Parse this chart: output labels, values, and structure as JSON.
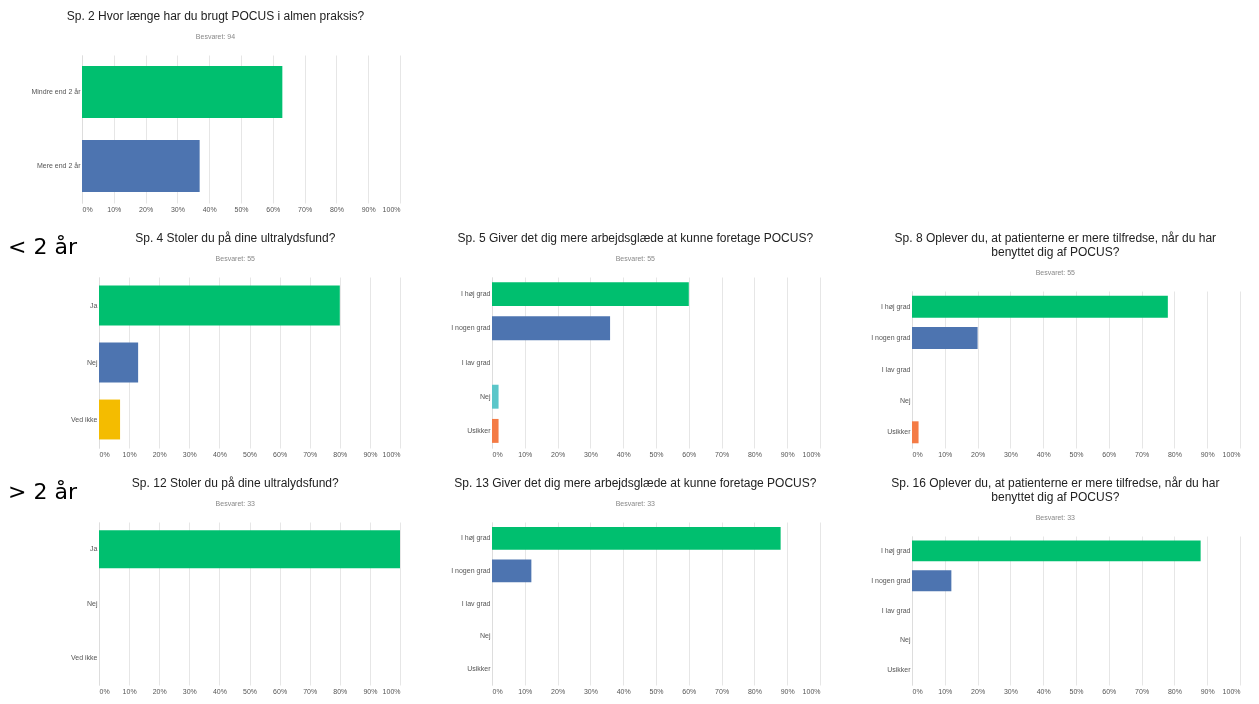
{
  "chart_data": [
    {
      "type": "bar",
      "orientation": "horizontal",
      "title": "Sp. 2 Hvor længe har du brugt POCUS i almen praksis?",
      "subtitle": "Besvaret: 94",
      "categories": [
        "Mindre end 2 år",
        "Mere end 2 år"
      ],
      "values": [
        63,
        37
      ],
      "colors": [
        "#00bf6f",
        "#4d74b0"
      ],
      "xlim": [
        0,
        100
      ],
      "xticks": [
        {
          "value": 0,
          "label": "0%"
        },
        {
          "value": 10,
          "label": "10%"
        },
        {
          "value": 20,
          "label": "20%"
        },
        {
          "value": 30,
          "label": "30%"
        },
        {
          "value": 40,
          "label": "40%"
        },
        {
          "value": 50,
          "label": "50%"
        },
        {
          "value": 60,
          "label": "60%"
        },
        {
          "value": 70,
          "label": "70%"
        },
        {
          "value": 80,
          "label": "80%"
        },
        {
          "value": 90,
          "label": "90%"
        },
        {
          "value": 100,
          "label": "100%"
        }
      ],
      "grid": "x"
    },
    {
      "type": "bar",
      "orientation": "horizontal",
      "title": "Sp. 4 Stoler du på dine ultralydsfund?",
      "subtitle": "Besvaret: 55",
      "annotations": [
        "< 2 år"
      ],
      "categories": [
        "Ja",
        "Nej",
        "Ved ikke"
      ],
      "values": [
        80,
        13,
        7
      ],
      "colors": [
        "#00bf6f",
        "#4d74b0",
        "#f4bc00"
      ],
      "xlim": [
        0,
        100
      ],
      "xticks": [
        {
          "value": 0,
          "label": "0%"
        },
        {
          "value": 10,
          "label": "10%"
        },
        {
          "value": 20,
          "label": "20%"
        },
        {
          "value": 30,
          "label": "30%"
        },
        {
          "value": 40,
          "label": "40%"
        },
        {
          "value": 50,
          "label": "50%"
        },
        {
          "value": 60,
          "label": "60%"
        },
        {
          "value": 70,
          "label": "70%"
        },
        {
          "value": 80,
          "label": "80%"
        },
        {
          "value": 90,
          "label": "90%"
        },
        {
          "value": 100,
          "label": "100%"
        }
      ],
      "grid": "x"
    },
    {
      "type": "bar",
      "orientation": "horizontal",
      "title": "Sp. 5 Giver det dig mere arbejdsglæde at kunne foretage POCUS?",
      "subtitle": "Besvaret: 55",
      "categories": [
        "I høj grad",
        "I nogen grad",
        "I lav grad",
        "Nej",
        "Usikker"
      ],
      "values": [
        60,
        36,
        0,
        2,
        2
      ],
      "colors": [
        "#00bf6f",
        "#4d74b0",
        "#f4bc00",
        "#5bc6c9",
        "#f47b45"
      ],
      "xlim": [
        0,
        100
      ],
      "xticks": [
        {
          "value": 0,
          "label": "0%"
        },
        {
          "value": 10,
          "label": "10%"
        },
        {
          "value": 20,
          "label": "20%"
        },
        {
          "value": 30,
          "label": "30%"
        },
        {
          "value": 40,
          "label": "40%"
        },
        {
          "value": 50,
          "label": "50%"
        },
        {
          "value": 60,
          "label": "60%"
        },
        {
          "value": 70,
          "label": "70%"
        },
        {
          "value": 80,
          "label": "80%"
        },
        {
          "value": 90,
          "label": "90%"
        },
        {
          "value": 100,
          "label": "100%"
        }
      ],
      "grid": "x"
    },
    {
      "type": "bar",
      "orientation": "horizontal",
      "title": "Sp. 8 Oplever du, at patienterne er mere tilfredse, når du har benyttet dig af POCUS?",
      "subtitle": "Besvaret: 55",
      "categories": [
        "I høj grad",
        "I nogen grad",
        "I lav grad",
        "Nej",
        "Usikker"
      ],
      "values": [
        78,
        20,
        0,
        0,
        2
      ],
      "colors": [
        "#00bf6f",
        "#4d74b0",
        "#f4bc00",
        "#5bc6c9",
        "#f47b45"
      ],
      "xlim": [
        0,
        100
      ],
      "xticks": [
        {
          "value": 0,
          "label": "0%"
        },
        {
          "value": 10,
          "label": "10%"
        },
        {
          "value": 20,
          "label": "20%"
        },
        {
          "value": 30,
          "label": "30%"
        },
        {
          "value": 40,
          "label": "40%"
        },
        {
          "value": 50,
          "label": "50%"
        },
        {
          "value": 60,
          "label": "60%"
        },
        {
          "value": 70,
          "label": "70%"
        },
        {
          "value": 80,
          "label": "80%"
        },
        {
          "value": 90,
          "label": "90%"
        },
        {
          "value": 100,
          "label": "100%"
        }
      ],
      "grid": "x"
    },
    {
      "type": "bar",
      "orientation": "horizontal",
      "title": "Sp. 12 Stoler du på dine ultralydsfund?",
      "subtitle": "Besvaret: 33",
      "annotations": [
        "> 2 år"
      ],
      "categories": [
        "Ja",
        "Nej",
        "Ved ikke"
      ],
      "values": [
        100,
        0,
        0
      ],
      "colors": [
        "#00bf6f",
        "#4d74b0",
        "#f4bc00"
      ],
      "xlim": [
        0,
        100
      ],
      "xticks": [
        {
          "value": 0,
          "label": "0%"
        },
        {
          "value": 10,
          "label": "10%"
        },
        {
          "value": 20,
          "label": "20%"
        },
        {
          "value": 30,
          "label": "30%"
        },
        {
          "value": 40,
          "label": "40%"
        },
        {
          "value": 50,
          "label": "50%"
        },
        {
          "value": 60,
          "label": "60%"
        },
        {
          "value": 70,
          "label": "70%"
        },
        {
          "value": 80,
          "label": "80%"
        },
        {
          "value": 90,
          "label": "90%"
        },
        {
          "value": 100,
          "label": "100%"
        }
      ],
      "grid": "x"
    },
    {
      "type": "bar",
      "orientation": "horizontal",
      "title": "Sp. 13 Giver det dig mere arbejdsglæde at kunne foretage POCUS?",
      "subtitle": "Besvaret: 33",
      "categories": [
        "I høj grad",
        "I nogen grad",
        "I lav grad",
        "Nej",
        "Usikker"
      ],
      "values": [
        88,
        12,
        0,
        0,
        0
      ],
      "colors": [
        "#00bf6f",
        "#4d74b0",
        "#f4bc00",
        "#5bc6c9",
        "#f47b45"
      ],
      "xlim": [
        0,
        100
      ],
      "xticks": [
        {
          "value": 0,
          "label": "0%"
        },
        {
          "value": 10,
          "label": "10%"
        },
        {
          "value": 20,
          "label": "20%"
        },
        {
          "value": 30,
          "label": "30%"
        },
        {
          "value": 40,
          "label": "40%"
        },
        {
          "value": 50,
          "label": "50%"
        },
        {
          "value": 60,
          "label": "60%"
        },
        {
          "value": 70,
          "label": "70%"
        },
        {
          "value": 80,
          "label": "80%"
        },
        {
          "value": 90,
          "label": "90%"
        },
        {
          "value": 100,
          "label": "100%"
        }
      ],
      "grid": "x"
    },
    {
      "type": "bar",
      "orientation": "horizontal",
      "title": "Sp. 16 Oplever du, at patienterne er mere tilfredse, når du har benyttet dig af POCUS?",
      "subtitle": "Besvaret: 33",
      "categories": [
        "I høj grad",
        "I nogen grad",
        "I lav grad",
        "Nej",
        "Usikker"
      ],
      "values": [
        88,
        12,
        0,
        0,
        0
      ],
      "colors": [
        "#00bf6f",
        "#4d74b0",
        "#f4bc00",
        "#5bc6c9",
        "#f47b45"
      ],
      "xlim": [
        0,
        100
      ],
      "xticks": [
        {
          "value": 0,
          "label": "0%"
        },
        {
          "value": 10,
          "label": "10%"
        },
        {
          "value": 20,
          "label": "20%"
        },
        {
          "value": 30,
          "label": "30%"
        },
        {
          "value": 40,
          "label": "40%"
        },
        {
          "value": 50,
          "label": "50%"
        },
        {
          "value": 60,
          "label": "60%"
        },
        {
          "value": 70,
          "label": "70%"
        },
        {
          "value": 80,
          "label": "80%"
        },
        {
          "value": 90,
          "label": "90%"
        },
        {
          "value": 100,
          "label": "100%"
        }
      ],
      "grid": "x"
    }
  ]
}
